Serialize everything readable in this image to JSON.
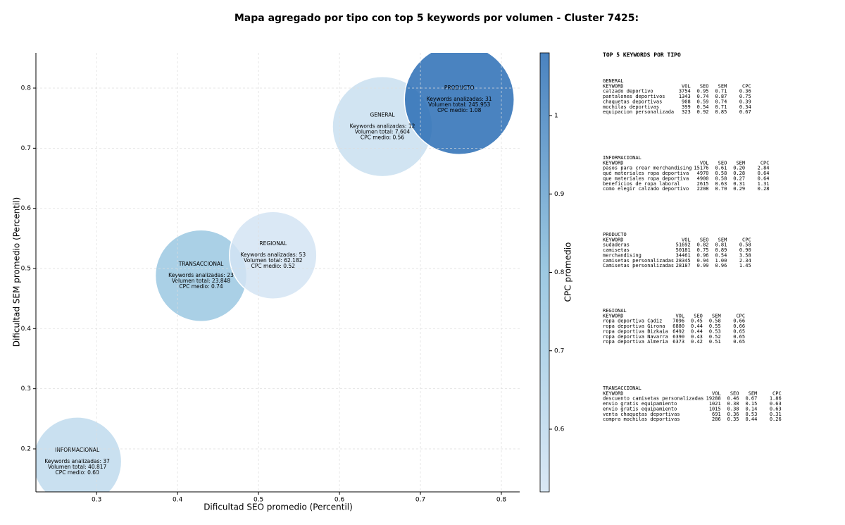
{
  "chart_data": {
    "type": "bubble",
    "title": "Mapa agregado por tipo con top 5 keywords por volumen - Cluster 7425:",
    "x_label": "Dificultad SEO promedio (Percentil)",
    "y_label": "Dificultad SEM promedio (Percentil)",
    "colorbar_label": "CPC promedio",
    "labels": [
      "INFORMACIONAL",
      "TRANSACCIONAL",
      "REGIONAL",
      "GENERAL",
      "PRODUCTO"
    ],
    "x": [
      0.276,
      0.429,
      0.518,
      0.653,
      0.748
    ],
    "y": [
      0.179,
      0.488,
      0.522,
      0.736,
      0.781
    ],
    "sizes": [
      63,
      65,
      62,
      71,
      78
    ],
    "cpc": [
      0.6,
      0.74,
      0.52,
      0.56,
      1.08
    ],
    "annotations": [
      [
        "Keywords analizadas: 37",
        "Volumen total: 40.817",
        "CPC medio: 0.60"
      ],
      [
        "Keywords analizadas: 23",
        "Volumen total: 23.848",
        "CPC medio: 0.74"
      ],
      [
        "Keywords analizadas: 53",
        "Volumen total: 62.182",
        "CPC medio: 0.52"
      ],
      [
        "Keywords analizadas: 12",
        "Volumen total: 7.604",
        "CPC medio: 0.56"
      ],
      [
        "Keywords analizadas: 31",
        "Volumen total: 245.953",
        "CPC medio: 1.08"
      ]
    ],
    "xlim": [
      0.225,
      0.8226
    ],
    "ylim": [
      0.1285,
      0.8586
    ],
    "xticks": [
      0.3,
      0.4,
      0.5,
      0.6,
      0.7,
      0.8
    ],
    "yticks": [
      0.2,
      0.3,
      0.4,
      0.5,
      0.6,
      0.7,
      0.8
    ],
    "clim": [
      0.52,
      1.08
    ],
    "cticks": [
      0.6,
      0.7,
      0.8,
      0.9,
      1.0
    ],
    "colormap": [
      "#d3e4f3",
      "#8cc0dd",
      "#2a6db5"
    ],
    "grid": true
  },
  "top_keywords": {
    "title": "TOP 5 KEYWORDS POR TIPO",
    "groups": [
      {
        "name": "GENERAL",
        "header": [
          "KEYWORD",
          "VOL",
          "SEO",
          "SEM",
          "CPC"
        ],
        "rows": [
          [
            "calzado deportivo",
            "3754",
            "0.95",
            "0.71",
            "0.36"
          ],
          [
            "pantalones deportivos",
            "1343",
            "0.74",
            "0.87",
            "0.75"
          ],
          [
            "chaquetas deportivas",
            "908",
            "0.59",
            "0.74",
            "0.39"
          ],
          [
            "mochilas deportivas",
            "399",
            "0.54",
            "0.71",
            "0.34"
          ],
          [
            "equipacion personalizada",
            "323",
            "0.92",
            "0.85",
            "0.67"
          ]
        ]
      },
      {
        "name": "INFORMACIONAL",
        "header": [
          "KEYWORD",
          "VOL",
          "SEO",
          "SEM",
          "CPC"
        ],
        "rows": [
          [
            "pasos para crear merchandising",
            "15176",
            "0.61",
            "0.20",
            "2.84"
          ],
          [
            "qué materiales ropa deportiva",
            "4970",
            "0.58",
            "0.28",
            "0.64"
          ],
          [
            "que materiales ropa deportiva",
            "4900",
            "0.58",
            "0.27",
            "0.64"
          ],
          [
            "beneficios de ropa laboral",
            "2615",
            "0.63",
            "0.31",
            "1.31"
          ],
          [
            "como elegir calzado deportivo",
            "2208",
            "0.70",
            "0.29",
            "0.28"
          ]
        ]
      },
      {
        "name": "PRODUCTO",
        "header": [
          "KEYWORD",
          "VOL",
          "SEO",
          "SEM",
          "CPC"
        ],
        "rows": [
          [
            "sudaderas",
            "51692",
            "0.82",
            "0.81",
            "0.58"
          ],
          [
            "camisetas",
            "50181",
            "0.75",
            "0.89",
            "0.90"
          ],
          [
            "merchandising",
            "34461",
            "0.96",
            "0.54",
            "3.58"
          ],
          [
            "camisetas personalizadas",
            "28345",
            "0.94",
            "1.00",
            "2.34"
          ],
          [
            "Camisetas personalizadas",
            "28187",
            "0.99",
            "0.96",
            "1.45"
          ]
        ]
      },
      {
        "name": "REGIONAL",
        "header": [
          "KEYWORD",
          "VOL",
          "SEO",
          "SEM",
          "CPC"
        ],
        "rows": [
          [
            "ropa deportiva Cadiz",
            "7096",
            "0.45",
            "0.58",
            "0.66"
          ],
          [
            "ropa deportiva Girona",
            "6880",
            "0.44",
            "0.55",
            "0.66"
          ],
          [
            "ropa deportiva Bizkaia",
            "6492",
            "0.44",
            "0.53",
            "0.65"
          ],
          [
            "ropa deportiva Navarra",
            "6390",
            "0.43",
            "0.52",
            "0.65"
          ],
          [
            "ropa deportiva Almeria",
            "6373",
            "0.42",
            "0.51",
            "0.65"
          ]
        ]
      },
      {
        "name": "TRANSACCIONAL",
        "header": [
          "KEYWORD",
          "VOL",
          "SEO",
          "SEM",
          "CPC"
        ],
        "rows": [
          [
            "descuento camisetas personalizadas",
            "19288",
            "0.46",
            "0.67",
            "1.86"
          ],
          [
            "envio gratis equipamiento",
            "1021",
            "0.38",
            "0.15",
            "0.63"
          ],
          [
            "envío gratis equipamiento",
            "1015",
            "0.38",
            "0.14",
            "0.63"
          ],
          [
            "venta chaquetas deportivas",
            "691",
            "0.36",
            "0.53",
            "0.31"
          ],
          [
            "compra mochilas deportivas",
            "286",
            "0.35",
            "0.44",
            "0.26"
          ]
        ]
      }
    ]
  }
}
